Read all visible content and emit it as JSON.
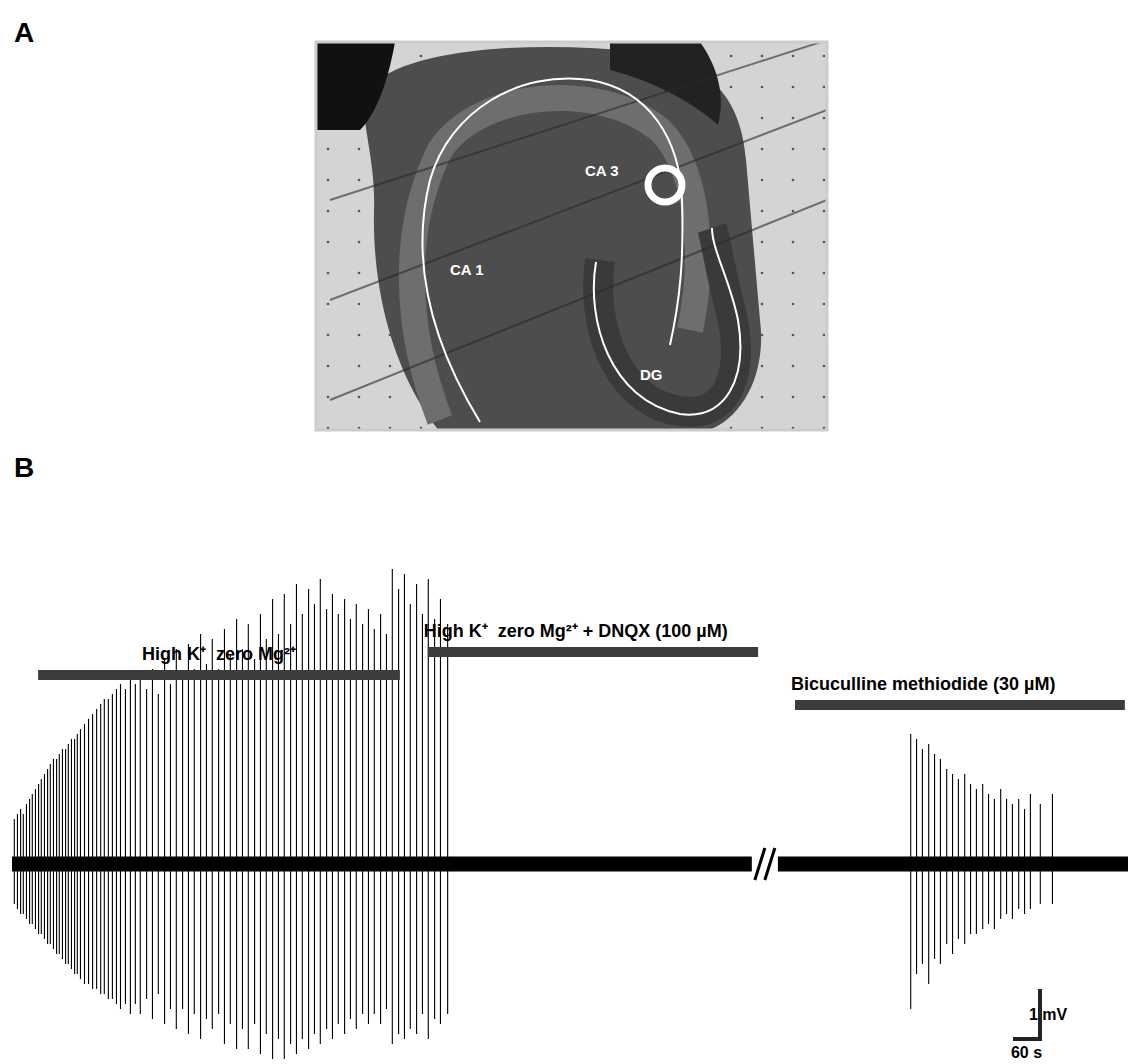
{
  "panel_a": {
    "letter": "A",
    "labels": {
      "ca3": "CA 3",
      "ca1": "CA 1",
      "dg": "DG"
    }
  },
  "chart_data": {
    "type": "trace",
    "letter": "B",
    "tick_labels": false,
    "color": "#000000",
    "xlim": [
      0,
      2480
    ],
    "ylim": [
      -4,
      7
    ],
    "segments": [
      [
        0,
        1644
      ],
      [
        1702,
        2480
      ]
    ],
    "noise": 0.15,
    "spikes": {
      "x": [
        4,
        11,
        18,
        24,
        31,
        38,
        44,
        51,
        58,
        64,
        71,
        78,
        84,
        91,
        98,
        104,
        111,
        118,
        124,
        131,
        138,
        144,
        151,
        160,
        169,
        178,
        187,
        196,
        204,
        213,
        222,
        231,
        240,
        251,
        262,
        273,
        284,
        298,
        311,
        324,
        338,
        351,
        364,
        378,
        391,
        404,
        418,
        431,
        444,
        458,
        471,
        484,
        498,
        511,
        524,
        538,
        551,
        564,
        578,
        591,
        604,
        618,
        631,
        644,
        658,
        671,
        684,
        698,
        711,
        724,
        738,
        751,
        764,
        778,
        791,
        804,
        818,
        831,
        844,
        858,
        871,
        884,
        898,
        911,
        924,
        938,
        951,
        967,
        1996,
        2009,
        2022,
        2036,
        2049,
        2062,
        2076,
        2089,
        2102,
        2116,
        2129,
        2142,
        2156,
        2169,
        2182,
        2196,
        2209,
        2222,
        2236,
        2249,
        2262,
        2284,
        2311
      ],
      "max": [
        0.9,
        1.0,
        1.1,
        1.0,
        1.2,
        1.3,
        1.4,
        1.5,
        1.6,
        1.7,
        1.8,
        1.9,
        2.0,
        2.1,
        2.1,
        2.2,
        2.3,
        2.3,
        2.4,
        2.5,
        2.5,
        2.6,
        2.7,
        2.8,
        2.9,
        3.0,
        3.1,
        3.2,
        3.3,
        3.3,
        3.4,
        3.5,
        3.6,
        3.5,
        3.7,
        3.6,
        3.8,
        3.5,
        3.9,
        3.4,
        4.1,
        3.6,
        4.3,
        3.8,
        4.4,
        3.9,
        4.6,
        4.0,
        4.5,
        3.9,
        4.7,
        4.2,
        4.9,
        4.3,
        4.8,
        4.1,
        5.0,
        4.5,
        5.3,
        4.6,
        5.4,
        4.8,
        5.6,
        5.0,
        5.5,
        5.2,
        5.7,
        5.1,
        5.4,
        5.0,
        5.3,
        4.9,
        5.2,
        4.8,
        5.1,
        4.7,
        5.0,
        4.6,
        5.9,
        5.5,
        5.8,
        5.2,
        5.6,
        5.0,
        5.7,
        4.9,
        5.3,
        4.8,
        2.6,
        2.5,
        2.3,
        2.4,
        2.2,
        2.1,
        1.9,
        1.8,
        1.7,
        1.8,
        1.6,
        1.5,
        1.6,
        1.4,
        1.3,
        1.5,
        1.3,
        1.2,
        1.3,
        1.1,
        1.4,
        1.2,
        1.4
      ],
      "min": [
        -0.8,
        -0.9,
        -1.0,
        -1.0,
        -1.1,
        -1.2,
        -1.2,
        -1.3,
        -1.4,
        -1.4,
        -1.5,
        -1.6,
        -1.6,
        -1.7,
        -1.8,
        -1.8,
        -1.9,
        -2.0,
        -2.0,
        -2.1,
        -2.2,
        -2.2,
        -2.3,
        -2.4,
        -2.4,
        -2.5,
        -2.5,
        -2.6,
        -2.6,
        -2.7,
        -2.7,
        -2.8,
        -2.9,
        -2.8,
        -3.0,
        -2.8,
        -3.0,
        -2.7,
        -3.1,
        -2.6,
        -3.2,
        -2.9,
        -3.3,
        -2.9,
        -3.4,
        -3.0,
        -3.5,
        -3.1,
        -3.3,
        -3.0,
        -3.6,
        -3.2,
        -3.7,
        -3.3,
        -3.7,
        -3.2,
        -3.8,
        -3.4,
        -3.9,
        -3.5,
        -3.9,
        -3.6,
        -3.8,
        -3.5,
        -3.7,
        -3.4,
        -3.6,
        -3.3,
        -3.5,
        -3.2,
        -3.4,
        -3.1,
        -3.3,
        -3.0,
        -3.2,
        -3.0,
        -3.2,
        -2.9,
        -3.6,
        -3.4,
        -3.5,
        -3.3,
        -3.4,
        -3.0,
        -3.5,
        -3.1,
        -3.2,
        -3.0,
        -2.9,
        -2.2,
        -2.0,
        -2.4,
        -1.9,
        -2.0,
        -1.6,
        -1.8,
        -1.5,
        -1.6,
        -1.4,
        -1.4,
        -1.3,
        -1.2,
        -1.3,
        -1.1,
        -1.0,
        -1.1,
        -0.9,
        -1.0,
        -0.9,
        -0.8,
        -0.8
      ]
    },
    "annotations": [
      {
        "label": "High K⁺  zero Mg²⁺",
        "x": [
          58,
          862
        ]
      },
      {
        "label": "High K⁺  zero Mg²⁺ + DNQX (100 µM)",
        "x": [
          924,
          1658
        ]
      },
      {
        "label": "Bicuculline methiodide (30 µM)",
        "x": [
          1740,
          2473
        ]
      }
    ],
    "scale_bar": {
      "x": 60,
      "x_label": "60 s",
      "y": 1,
      "y_label": "1 mV"
    }
  }
}
